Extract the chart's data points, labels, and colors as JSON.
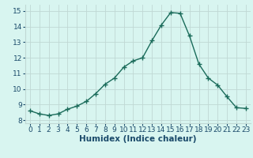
{
  "x": [
    0,
    1,
    2,
    3,
    4,
    5,
    6,
    7,
    8,
    9,
    10,
    11,
    12,
    13,
    14,
    15,
    16,
    17,
    18,
    19,
    20,
    21,
    22,
    23
  ],
  "y": [
    8.6,
    8.4,
    8.3,
    8.4,
    8.7,
    8.9,
    9.2,
    9.7,
    10.3,
    10.7,
    11.4,
    11.8,
    12.0,
    13.1,
    14.1,
    14.9,
    14.85,
    13.4,
    11.6,
    10.7,
    10.25,
    9.5,
    8.8,
    8.75
  ],
  "line_color": "#1a6b5a",
  "marker": "+",
  "marker_size": 4,
  "bg_color": "#d8f5f0",
  "grid_color": "#c0d8d4",
  "xlabel": "Humidex (Indice chaleur)",
  "xlim": [
    -0.5,
    23.5
  ],
  "ylim": [
    7.8,
    15.4
  ],
  "yticks": [
    8,
    9,
    10,
    11,
    12,
    13,
    14,
    15
  ],
  "xticks": [
    0,
    1,
    2,
    3,
    4,
    5,
    6,
    7,
    8,
    9,
    10,
    11,
    12,
    13,
    14,
    15,
    16,
    17,
    18,
    19,
    20,
    21,
    22,
    23
  ],
  "tick_color": "#1a4a6a",
  "xlabel_color": "#1a4a6a",
  "font_size": 6.5,
  "xlabel_fontsize": 7.5,
  "line_width": 1.0
}
